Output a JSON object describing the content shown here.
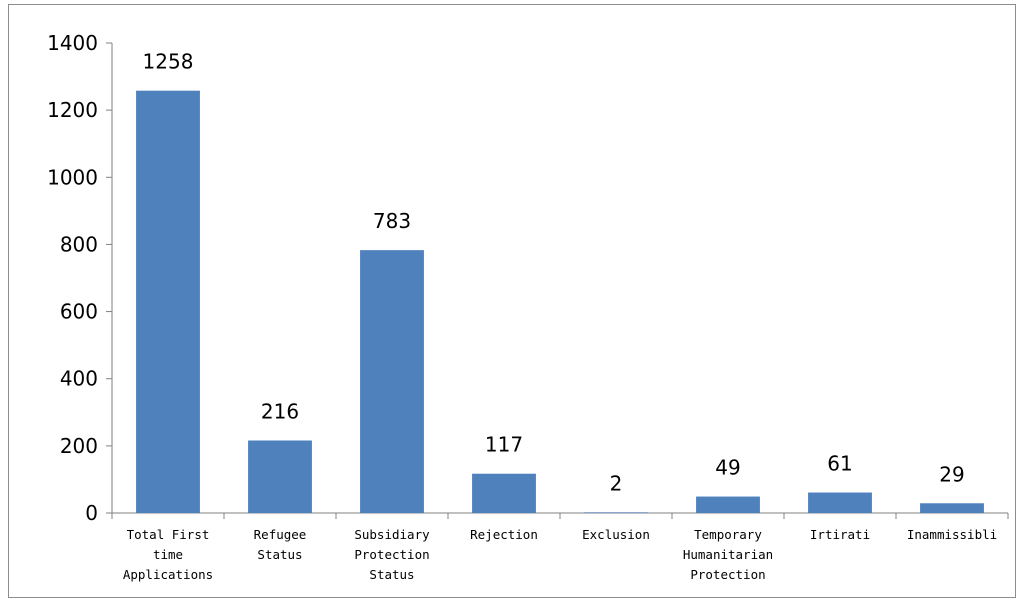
{
  "chart_data": {
    "type": "bar",
    "categories": [
      "Total First time Applications",
      "Refugee Status",
      "Subsidiary Protection Status",
      "Rejection",
      "Exclusion",
      "Temporary Humanitarian Protection",
      "Irtirati",
      "Inammissibli"
    ],
    "category_lines": [
      [
        "Total First",
        "time",
        "Applications"
      ],
      [
        "Refugee",
        "Status"
      ],
      [
        "Subsidiary",
        "Protection",
        "Status"
      ],
      [
        "Rejection"
      ],
      [
        "Exclusion"
      ],
      [
        "Temporary",
        "Humanitarian",
        "Protection"
      ],
      [
        "Irtirati"
      ],
      [
        "Inammissibli"
      ]
    ],
    "values": [
      1258,
      216,
      783,
      117,
      2,
      49,
      61,
      29
    ],
    "ylim": [
      0,
      1400
    ],
    "yticks": [
      0,
      200,
      400,
      600,
      800,
      1000,
      1200,
      1400
    ],
    "title": "",
    "xlabel": "",
    "ylabel": "",
    "grid": false,
    "legend": "none",
    "data_labels": true,
    "bar_color": "#4f81bd",
    "axis_color": "#808080"
  }
}
